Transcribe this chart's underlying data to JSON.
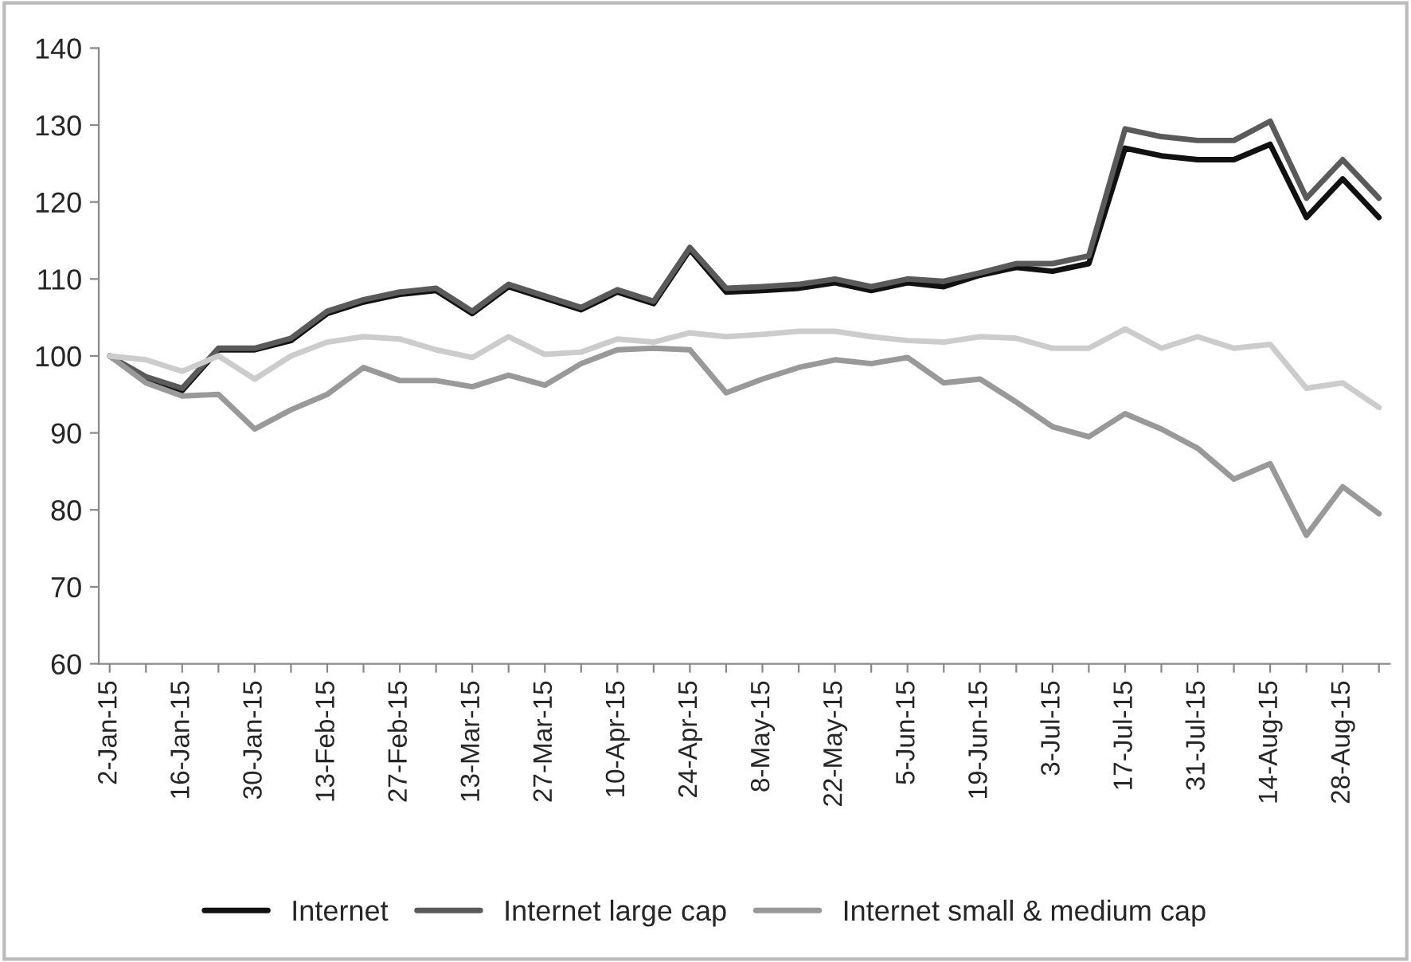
{
  "chart_data": {
    "type": "line",
    "categories": [
      "2-Jan-15",
      null,
      "16-Jan-15",
      null,
      "30-Jan-15",
      null,
      "13-Feb-15",
      null,
      "27-Feb-15",
      null,
      "13-Mar-15",
      null,
      "27-Mar-15",
      null,
      "10-Apr-15",
      null,
      "24-Apr-15",
      null,
      "8-May-15",
      null,
      "22-May-15",
      null,
      "5-Jun-15",
      null,
      "19-Jun-15",
      null,
      "3-Jul-15",
      null,
      "17-Jul-15",
      null,
      "31-Jul-15",
      null,
      "14-Aug-15",
      null,
      "28-Aug-15",
      null
    ],
    "series": [
      {
        "name": "Internet",
        "color": "#111111",
        "values": [
          100,
          97,
          95.5,
          100.8,
          100.8,
          102,
          105.5,
          107,
          108,
          108.5,
          105.5,
          109,
          107.5,
          106,
          108.3,
          106.8,
          113.8,
          108.3,
          108.5,
          108.8,
          109.5,
          108.5,
          109.5,
          109,
          110.5,
          111.5,
          111,
          112,
          127,
          126,
          125.5,
          125.5,
          127.5,
          118,
          123,
          118
        ]
      },
      {
        "name": "Internet large cap",
        "color": "#5a5a5a",
        "values": [
          100,
          97.3,
          95.8,
          101,
          101,
          102.3,
          105.8,
          107.3,
          108.3,
          108.8,
          105.8,
          109.3,
          107.8,
          106.3,
          108.6,
          107.1,
          114.1,
          108.8,
          109,
          109.3,
          110,
          109,
          110,
          109.7,
          110.8,
          112,
          112,
          113,
          129.5,
          128.5,
          128,
          128,
          130.5,
          120.5,
          125.5,
          120.5
        ]
      },
      {
        "name": "Internet small & medium cap",
        "color": "#999999",
        "values": [
          100,
          96.5,
          94.8,
          95,
          90.5,
          93,
          95,
          98.5,
          96.8,
          96.8,
          96,
          97.5,
          96.2,
          99,
          100.8,
          101,
          100.8,
          95.2,
          97,
          98.5,
          99.5,
          99,
          99.8,
          96.5,
          97,
          94,
          90.8,
          89.5,
          92.5,
          90.5,
          88,
          84,
          86,
          76.7,
          83,
          79.5
        ]
      },
      {
        "color": "#cccccc",
        "values": [
          100,
          99.5,
          98,
          100,
          97,
          100,
          101.8,
          102.5,
          102.2,
          100.8,
          99.8,
          102.5,
          100.2,
          100.5,
          102.2,
          101.8,
          103,
          102.5,
          102.8,
          103.2,
          103.2,
          102.5,
          102,
          101.8,
          102.5,
          102.3,
          101,
          101,
          103.5,
          101,
          102.5,
          101,
          101.5,
          95.8,
          96.5,
          93.3
        ]
      }
    ],
    "ylim": [
      60,
      140
    ],
    "yticks": [
      60,
      70,
      80,
      90,
      100,
      110,
      120,
      130,
      140
    ],
    "legend": "bottom",
    "grid": false
  }
}
